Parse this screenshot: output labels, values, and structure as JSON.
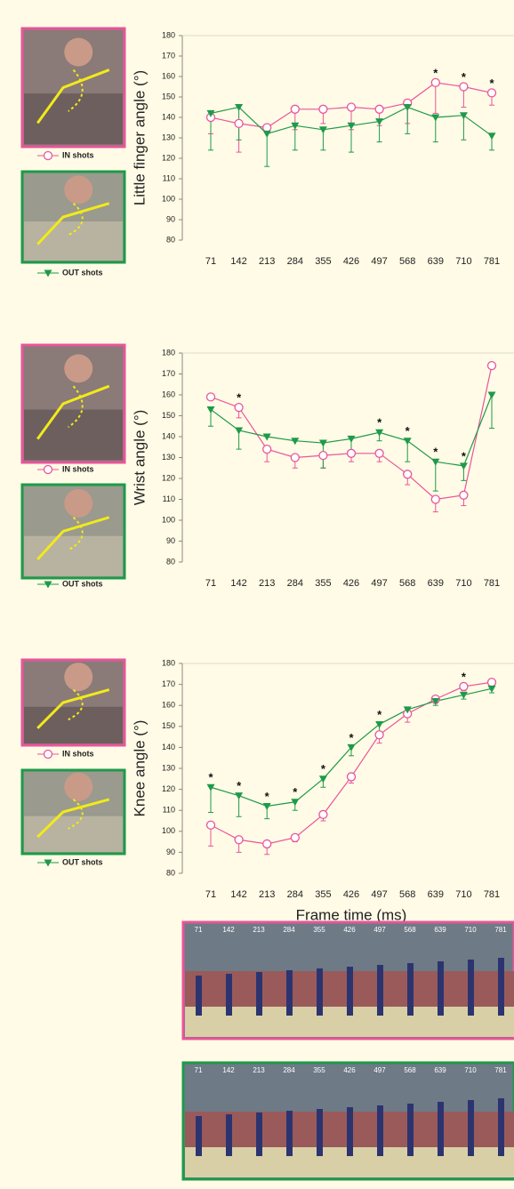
{
  "chart_data": [
    {
      "type": "line",
      "y_label": "Little finger angle (°)",
      "categories": [
        "71",
        "142",
        "213",
        "284",
        "355",
        "426",
        "497",
        "568",
        "639",
        "710",
        "781"
      ],
      "ylim": [
        80,
        180
      ],
      "yticks": [
        80,
        90,
        100,
        110,
        120,
        130,
        140,
        150,
        160,
        170,
        180
      ],
      "series": [
        {
          "name": "IN shots",
          "color": "#e8559b",
          "marker": "circle-open",
          "values": [
            140,
            137,
            135,
            144,
            144,
            145,
            144,
            147,
            157,
            155,
            152
          ],
          "errors": [
            8,
            14,
            0,
            10,
            7,
            11,
            8,
            10,
            15,
            10,
            6
          ]
        },
        {
          "name": "OUT shots",
          "color": "#1e9a4a",
          "marker": "triangle-down",
          "values": [
            142,
            145,
            132,
            136,
            134,
            136,
            138,
            145,
            140,
            141,
            131
          ],
          "errors": [
            18,
            16,
            16,
            12,
            10,
            13,
            10,
            13,
            12,
            12,
            7
          ]
        }
      ],
      "annotations": [
        {
          "category": "639",
          "text": "*"
        },
        {
          "category": "710",
          "text": "*"
        },
        {
          "category": "781",
          "text": "*"
        }
      ]
    },
    {
      "type": "line",
      "y_label": "Wrist angle (°)",
      "categories": [
        "71",
        "142",
        "213",
        "284",
        "355",
        "426",
        "497",
        "568",
        "639",
        "710",
        "781"
      ],
      "ylim": [
        80,
        180
      ],
      "yticks": [
        80,
        90,
        100,
        110,
        120,
        130,
        140,
        150,
        160,
        170,
        180
      ],
      "series": [
        {
          "name": "IN shots",
          "color": "#e8559b",
          "marker": "circle-open",
          "values": [
            159,
            154,
            134,
            130,
            131,
            132,
            132,
            122,
            110,
            112,
            174
          ],
          "errors": [
            0,
            5,
            6,
            5,
            6,
            4,
            4,
            5,
            6,
            5,
            0
          ]
        },
        {
          "name": "OUT shots",
          "color": "#1e9a4a",
          "marker": "triangle-down",
          "values": [
            153,
            143,
            140,
            138,
            137,
            139,
            142,
            138,
            128,
            126,
            160
          ],
          "errors": [
            8,
            9,
            0,
            0,
            12,
            6,
            4,
            10,
            14,
            7,
            16
          ]
        }
      ],
      "annotations": [
        {
          "category": "142",
          "text": "*"
        },
        {
          "category": "497",
          "text": "*"
        },
        {
          "category": "568",
          "text": "*"
        },
        {
          "category": "639",
          "text": "*"
        },
        {
          "category": "710",
          "text": "*"
        }
      ]
    },
    {
      "type": "line",
      "y_label": "Knee angle (°)",
      "x_label": "Frame time (ms)",
      "categories": [
        "71",
        "142",
        "213",
        "284",
        "355",
        "426",
        "497",
        "568",
        "639",
        "710",
        "781"
      ],
      "ylim": [
        80,
        180
      ],
      "yticks": [
        80,
        90,
        100,
        110,
        120,
        130,
        140,
        150,
        160,
        170,
        180
      ],
      "series": [
        {
          "name": "IN shots",
          "color": "#e8559b",
          "marker": "circle-open",
          "values": [
            103,
            96,
            94,
            97,
            108,
            126,
            146,
            156,
            163,
            169,
            171
          ],
          "errors": [
            10,
            6,
            5,
            2,
            3,
            3,
            4,
            4,
            2,
            2,
            0
          ]
        },
        {
          "name": "OUT shots",
          "color": "#1e9a4a",
          "marker": "triangle-down",
          "values": [
            121,
            117,
            112,
            114,
            125,
            140,
            151,
            158,
            162,
            165,
            168
          ],
          "errors": [
            12,
            10,
            6,
            4,
            4,
            4,
            4,
            0,
            2,
            2,
            2
          ]
        }
      ],
      "annotations": [
        {
          "category": "71",
          "text": "*"
        },
        {
          "category": "142",
          "text": "*"
        },
        {
          "category": "213",
          "text": "*"
        },
        {
          "category": "284",
          "text": "*"
        },
        {
          "category": "355",
          "text": "*"
        },
        {
          "category": "426",
          "text": "*"
        },
        {
          "category": "497",
          "text": "*"
        },
        {
          "category": "710",
          "text": "*"
        }
      ]
    }
  ]
}
